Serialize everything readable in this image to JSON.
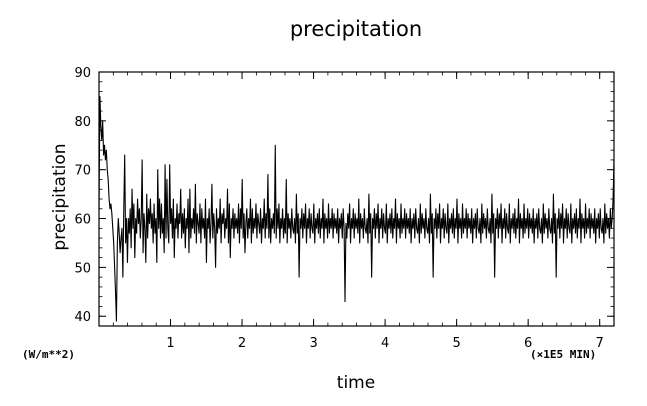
{
  "chart_data": {
    "type": "line",
    "title": "precipitation",
    "xlabel": "time",
    "ylabel": "precipitation",
    "y_unit_label": "(W/m**2)",
    "x_unit_label": "(×1E5 MIN)",
    "xlim": [
      0,
      7.2
    ],
    "ylim": [
      38,
      90
    ],
    "x_ticks": [
      "1",
      "2",
      "3",
      "4",
      "5",
      "6",
      "7"
    ],
    "y_ticks": [
      "40",
      "50",
      "60",
      "70",
      "80",
      "90"
    ],
    "grid": false,
    "series": [
      {
        "x_start": 0,
        "x_step": 0.012,
        "values": [
          62.0,
          85.0,
          79.0,
          76.0,
          80.0,
          73.0,
          75.0,
          72.0,
          74.0,
          70.0,
          68.0,
          64.0,
          62.0,
          63.0,
          61.0,
          58.0,
          55.0,
          50.0,
          45.0,
          39.0,
          55.0,
          60.0,
          57.0,
          53.0,
          56.0,
          58.0,
          48.0,
          62.0,
          73.0,
          55.0,
          60.0,
          51.0,
          60.0,
          57.0,
          62.0,
          54.0,
          66.0,
          58.0,
          63.0,
          52.0,
          60.0,
          57.0,
          64.0,
          59.0,
          62.0,
          56.0,
          60.0,
          72.0,
          53.0,
          61.0,
          58.0,
          51.0,
          65.0,
          56.0,
          62.0,
          59.0,
          64.0,
          58.0,
          61.0,
          55.0,
          63.0,
          57.0,
          60.0,
          51.0,
          70.0,
          58.0,
          64.0,
          56.0,
          63.0,
          57.0,
          60.0,
          53.0,
          71.0,
          56.0,
          68.0,
          58.0,
          55.0,
          71.0,
          59.0,
          62.0,
          56.0,
          64.0,
          52.0,
          60.0,
          58.0,
          63.0,
          56.0,
          61.0,
          59.0,
          66.0,
          56.0,
          61.0,
          57.0,
          62.0,
          54.0,
          60.0,
          58.0,
          64.0,
          53.0,
          66.0,
          56.0,
          60.0,
          58.0,
          62.0,
          57.0,
          67.0,
          55.0,
          61.0,
          59.0,
          57.0,
          63.0,
          55.0,
          62.0,
          58.0,
          60.0,
          56.0,
          64.0,
          51.0,
          60.0,
          58.0,
          62.0,
          55.0,
          59.0,
          67.0,
          56.0,
          61.0,
          58.0,
          50.0,
          62.0,
          57.0,
          60.0,
          58.0,
          64.0,
          55.0,
          61.0,
          59.0,
          62.0,
          56.0,
          60.0,
          58.0,
          66.0,
          55.0,
          63.0,
          52.0,
          60.0,
          58.0,
          62.0,
          56.0,
          61.0,
          58.0,
          60.0,
          57.0,
          63.0,
          55.0,
          62.0,
          58.0,
          68.0,
          56.0,
          61.0,
          53.0,
          59.0,
          62.0,
          56.0,
          60.0,
          58.0,
          64.0,
          55.0,
          62.0,
          57.0,
          60.0,
          58.0,
          63.0,
          56.0,
          61.0,
          59.0,
          57.0,
          62.0,
          55.0,
          60.0,
          58.0,
          64.0,
          56.0,
          61.0,
          58.0,
          69.0,
          56.0,
          62.0,
          55.0,
          60.0,
          58.0,
          61.0,
          57.0,
          75.0,
          56.0,
          62.0,
          58.0,
          63.0,
          55.0,
          60.0,
          58.0,
          62.0,
          56.0,
          60.0,
          57.0,
          68.0,
          55.0,
          61.0,
          58.0,
          60.0,
          56.0,
          62.0,
          58.0,
          57.0,
          60.0,
          55.0,
          65.0,
          57.0,
          61.0,
          48.0,
          60.0,
          58.0,
          62.0,
          56.0,
          61.0,
          58.0,
          63.0,
          55.0,
          60.0,
          58.0,
          62.0,
          56.0,
          61.0,
          58.0,
          57.0,
          63.0,
          55.0,
          60.0,
          58.0,
          61.0,
          57.0,
          62.0,
          56.0,
          60.0,
          58.0,
          64.0,
          55.0,
          61.0,
          58.0,
          60.0,
          56.0,
          63.0,
          57.0,
          60.0,
          58.0,
          62.0,
          56.0,
          61.0,
          58.0,
          60.0,
          57.0,
          62.0,
          55.0,
          60.0,
          58.0,
          61.0,
          56.0,
          62.0,
          58.0,
          43.0,
          59.0,
          56.0,
          61.0,
          58.0,
          63.0,
          55.0,
          60.0,
          58.0,
          62.0,
          56.0,
          61.0,
          58.0,
          60.0,
          57.0,
          64.0,
          55.0,
          61.0,
          58.0,
          60.0,
          56.0,
          62.0,
          58.0,
          57.0,
          60.0,
          55.0,
          65.0,
          57.0,
          61.0,
          48.0,
          60.0,
          58.0,
          62.0,
          56.0,
          61.0,
          58.0,
          63.0,
          55.0,
          60.0,
          58.0,
          62.0,
          56.0,
          61.0,
          58.0,
          57.0,
          63.0,
          55.0,
          60.0,
          58.0,
          61.0,
          57.0,
          62.0,
          56.0,
          60.0,
          58.0,
          64.0,
          55.0,
          61.0,
          58.0,
          60.0,
          56.0,
          63.0,
          57.0,
          60.0,
          58.0,
          62.0,
          56.0,
          61.0,
          58.0,
          60.0,
          57.0,
          62.0,
          55.0,
          60.0,
          58.0,
          61.0,
          56.0,
          62.0,
          58.0,
          57.0,
          60.0,
          55.0,
          63.0,
          57.0,
          61.0,
          58.0,
          60.0,
          56.0,
          62.0,
          58.0,
          57.0,
          60.0,
          55.0,
          65.0,
          57.0,
          61.0,
          48.0,
          60.0,
          58.0,
          62.0,
          56.0,
          61.0,
          58.0,
          63.0,
          55.0,
          60.0,
          58.0,
          62.0,
          56.0,
          61.0,
          58.0,
          57.0,
          63.0,
          55.0,
          60.0,
          58.0,
          61.0,
          57.0,
          62.0,
          56.0,
          60.0,
          58.0,
          64.0,
          55.0,
          61.0,
          58.0,
          60.0,
          56.0,
          63.0,
          57.0,
          60.0,
          58.0,
          62.0,
          56.0,
          61.0,
          58.0,
          60.0,
          57.0,
          62.0,
          55.0,
          60.0,
          58.0,
          61.0,
          56.0,
          62.0,
          58.0,
          57.0,
          60.0,
          55.0,
          63.0,
          57.0,
          61.0,
          58.0,
          60.0,
          56.0,
          62.0,
          58.0,
          57.0,
          60.0,
          55.0,
          65.0,
          57.0,
          61.0,
          48.0,
          60.0,
          58.0,
          62.0,
          56.0,
          61.0,
          58.0,
          63.0,
          55.0,
          60.0,
          58.0,
          62.0,
          56.0,
          61.0,
          58.0,
          57.0,
          63.0,
          55.0,
          60.0,
          58.0,
          61.0,
          57.0,
          62.0,
          56.0,
          60.0,
          58.0,
          64.0,
          55.0,
          61.0,
          58.0,
          60.0,
          56.0,
          63.0,
          57.0,
          60.0,
          58.0,
          62.0,
          56.0,
          61.0,
          58.0,
          60.0,
          57.0,
          62.0,
          55.0,
          60.0,
          58.0,
          61.0,
          56.0,
          62.0,
          58.0,
          57.0,
          60.0,
          55.0,
          63.0,
          57.0,
          61.0,
          58.0,
          60.0,
          56.0,
          62.0,
          58.0,
          57.0,
          60.0,
          55.0,
          65.0,
          57.0,
          61.0,
          48.0,
          60.0,
          58.0,
          62.0,
          56.0,
          61.0,
          58.0,
          63.0,
          55.0,
          60.0,
          58.0,
          62.0,
          56.0,
          61.0,
          58.0,
          57.0,
          63.0,
          55.0,
          60.0,
          58.0,
          61.0,
          57.0,
          62.0,
          56.0,
          60.0,
          58.0,
          64.0,
          55.0,
          61.0,
          58.0,
          60.0,
          56.0,
          63.0,
          57.0,
          60.0,
          58.0,
          62.0,
          56.0,
          61.0,
          58.0,
          60.0,
          57.0,
          62.0,
          55.0,
          60.0,
          58.0,
          61.0,
          56.0,
          62.0,
          58.0,
          57.0,
          60.0,
          55.0,
          63.0,
          57.0,
          61.0,
          58.0,
          60.0,
          56.0,
          62.0,
          58.0,
          60.0,
          64.0,
          72.0
        ]
      }
    ],
    "line_color": "#000000"
  }
}
